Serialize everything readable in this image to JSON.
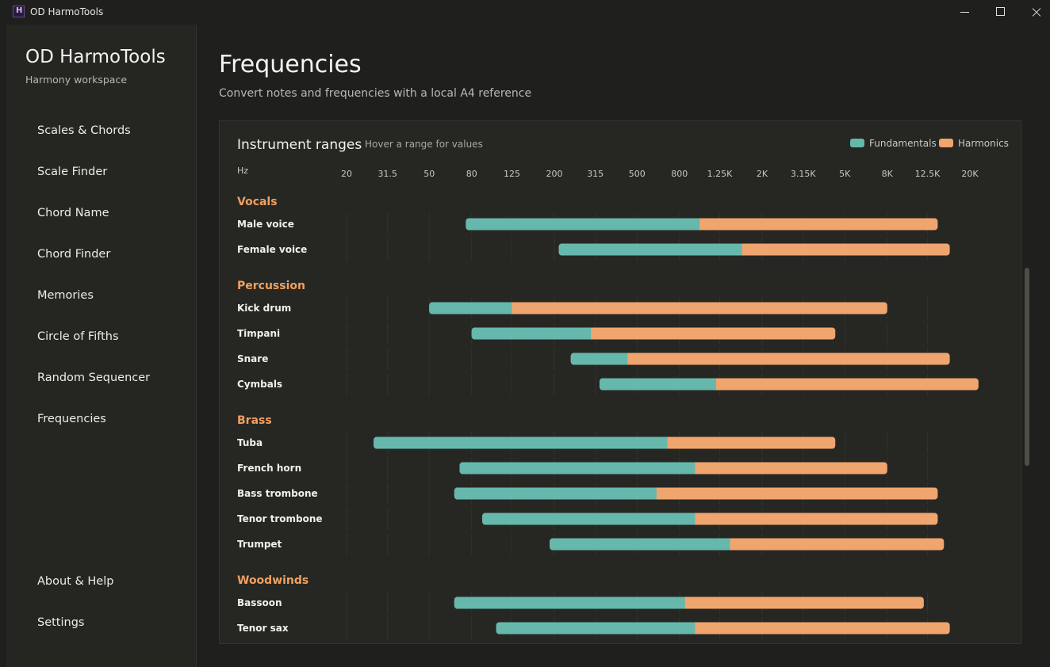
{
  "window": {
    "title": "OD HarmoTools",
    "icon": "app-logo-icon",
    "icon_letter": "H",
    "controls": [
      "minimize-icon",
      "maximize-icon",
      "close-icon"
    ]
  },
  "sidebar": {
    "title": "OD HarmoTools",
    "subtitle": "Harmony workspace",
    "items": [
      {
        "label": "Scales & Chords"
      },
      {
        "label": "Scale Finder"
      },
      {
        "label": "Chord Name"
      },
      {
        "label": "Chord Finder"
      },
      {
        "label": "Memories"
      },
      {
        "label": "Circle of Fifths"
      },
      {
        "label": "Random Sequencer"
      },
      {
        "label": "Frequencies"
      }
    ],
    "footer_items": [
      {
        "label": "About & Help"
      },
      {
        "label": "Settings"
      }
    ]
  },
  "page": {
    "title": "Frequencies",
    "subtitle": "Convert notes and frequencies with a local A4 reference"
  },
  "colors": {
    "fundamentals": "#66b8ad",
    "harmonics": "#f0a56e",
    "group_heading": "#f0a060",
    "background": "#1f201d",
    "card": "#262723"
  },
  "chart_data": {
    "type": "range-bar",
    "title": "Instrument ranges",
    "hint": "Hover a range for values",
    "axis_unit": "Hz",
    "x_scale": "log",
    "xlim": [
      16,
      28000
    ],
    "legend_position": "top-right",
    "legend": [
      {
        "name": "Fundamentals",
        "color": "#66b8ad"
      },
      {
        "name": "Harmonics",
        "color": "#f0a56e"
      }
    ],
    "tick_labels": [
      "20",
      "31.5",
      "50",
      "80",
      "125",
      "200",
      "315",
      "500",
      "800",
      "1.25K",
      "2K",
      "3.15K",
      "5K",
      "8K",
      "12.5K",
      "20K"
    ],
    "tick_values": [
      20,
      31.5,
      50,
      80,
      125,
      200,
      315,
      500,
      800,
      1250,
      2000,
      3150,
      5000,
      8000,
      12500,
      20000
    ],
    "grid_values": [
      20,
      31.5,
      50,
      80,
      125,
      200,
      315,
      500,
      800,
      1250,
      2000,
      3150,
      5000,
      8000,
      12500
    ],
    "groups": [
      {
        "name": "Vocals",
        "instruments": [
          {
            "name": "Male voice",
            "fundamental": [
              75,
              1000
            ],
            "harmonics_to": 14000
          },
          {
            "name": "Female voice",
            "fundamental": [
              210,
              1600
            ],
            "harmonics_to": 16000
          }
        ]
      },
      {
        "name": "Percussion",
        "instruments": [
          {
            "name": "Kick drum",
            "fundamental": [
              50,
              125
            ],
            "harmonics_to": 8000
          },
          {
            "name": "Timpani",
            "fundamental": [
              80,
              300
            ],
            "harmonics_to": 4500
          },
          {
            "name": "Snare",
            "fundamental": [
              240,
              450
            ],
            "harmonics_to": 16000
          },
          {
            "name": "Cymbals",
            "fundamental": [
              330,
              1200
            ],
            "harmonics_to": 22000
          }
        ]
      },
      {
        "name": "Brass",
        "instruments": [
          {
            "name": "Tuba",
            "fundamental": [
              27,
              700
            ],
            "harmonics_to": 4500
          },
          {
            "name": "French horn",
            "fundamental": [
              70,
              950
            ],
            "harmonics_to": 8000
          },
          {
            "name": "Bass trombone",
            "fundamental": [
              66,
              620
            ],
            "harmonics_to": 14000
          },
          {
            "name": "Tenor trombone",
            "fundamental": [
              90,
              950
            ],
            "harmonics_to": 14000
          },
          {
            "name": "Trumpet",
            "fundamental": [
              190,
              1400
            ],
            "harmonics_to": 15000
          }
        ]
      },
      {
        "name": "Woodwinds",
        "instruments": [
          {
            "name": "Bassoon",
            "fundamental": [
              66,
              850
            ],
            "harmonics_to": 12000
          },
          {
            "name": "Tenor sax",
            "fundamental": [
              105,
              950
            ],
            "harmonics_to": 16000
          }
        ]
      }
    ]
  }
}
